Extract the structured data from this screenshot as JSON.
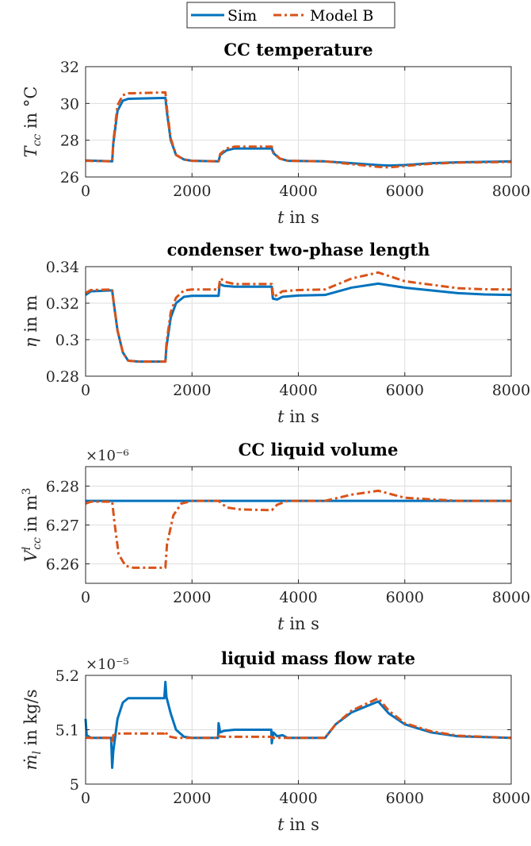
{
  "legend": {
    "entries": [
      {
        "name": "Sim",
        "color": "#0072BD",
        "style": "solid"
      },
      {
        "name": "Model B",
        "color": "#D95319",
        "style": "dashdot"
      }
    ]
  },
  "chart_data": [
    {
      "type": "line",
      "title": "CC temperature",
      "xlabel": "t in s",
      "ylabel": "T_cc in °C",
      "xlim": [
        0,
        8000
      ],
      "ylim": [
        26,
        32
      ],
      "xticks": [
        0,
        2000,
        4000,
        6000,
        8000
      ],
      "yticks": [
        26,
        28,
        30,
        32
      ],
      "exponent": "",
      "grid": true,
      "series": [
        {
          "name": "Sim",
          "points": [
            [
              0,
              26.9
            ],
            [
              500,
              26.85
            ],
            [
              520,
              27.8
            ],
            [
              600,
              29.6
            ],
            [
              700,
              30.15
            ],
            [
              800,
              30.25
            ],
            [
              1500,
              30.3
            ],
            [
              1530,
              29.5
            ],
            [
              1600,
              28.0
            ],
            [
              1700,
              27.2
            ],
            [
              1850,
              26.95
            ],
            [
              2000,
              26.88
            ],
            [
              2500,
              26.85
            ],
            [
              2530,
              27.2
            ],
            [
              2650,
              27.45
            ],
            [
              2800,
              27.55
            ],
            [
              3500,
              27.55
            ],
            [
              3530,
              27.3
            ],
            [
              3650,
              27.0
            ],
            [
              3800,
              26.88
            ],
            [
              4500,
              26.85
            ],
            [
              5000,
              26.75
            ],
            [
              5500,
              26.65
            ],
            [
              5700,
              26.62
            ],
            [
              6000,
              26.65
            ],
            [
              6500,
              26.75
            ],
            [
              7000,
              26.8
            ],
            [
              8000,
              26.85
            ]
          ]
        },
        {
          "name": "Model B",
          "points": [
            [
              0,
              26.88
            ],
            [
              500,
              26.85
            ],
            [
              520,
              27.9
            ],
            [
              600,
              29.9
            ],
            [
              700,
              30.45
            ],
            [
              800,
              30.55
            ],
            [
              1500,
              30.6
            ],
            [
              1530,
              29.7
            ],
            [
              1600,
              28.1
            ],
            [
              1700,
              27.2
            ],
            [
              1850,
              26.95
            ],
            [
              2000,
              26.88
            ],
            [
              2500,
              26.85
            ],
            [
              2530,
              27.25
            ],
            [
              2650,
              27.55
            ],
            [
              2800,
              27.65
            ],
            [
              3500,
              27.65
            ],
            [
              3530,
              27.35
            ],
            [
              3650,
              27.0
            ],
            [
              3800,
              26.88
            ],
            [
              4500,
              26.85
            ],
            [
              5000,
              26.7
            ],
            [
              5500,
              26.55
            ],
            [
              5700,
              26.52
            ],
            [
              6000,
              26.6
            ],
            [
              6500,
              26.72
            ],
            [
              7000,
              26.78
            ],
            [
              8000,
              26.82
            ]
          ]
        }
      ]
    },
    {
      "type": "line",
      "title": "condenser two-phase length",
      "xlabel": "t in s",
      "ylabel": "η in m",
      "xlim": [
        0,
        8000
      ],
      "ylim": [
        0.28,
        0.34
      ],
      "xticks": [
        0,
        2000,
        4000,
        6000,
        8000
      ],
      "yticks": [
        0.28,
        0.3,
        0.32,
        0.34
      ],
      "ytick_labels": [
        "0.28",
        "0.3",
        "0.32",
        "0.34"
      ],
      "exponent": "",
      "grid": true,
      "series": [
        {
          "name": "Sim",
          "points": [
            [
              0,
              0.3245
            ],
            [
              100,
              0.3265
            ],
            [
              500,
              0.327
            ],
            [
              520,
              0.322
            ],
            [
              600,
              0.305
            ],
            [
              700,
              0.293
            ],
            [
              800,
              0.2885
            ],
            [
              1000,
              0.288
            ],
            [
              1500,
              0.288
            ],
            [
              1520,
              0.296
            ],
            [
              1600,
              0.312
            ],
            [
              1700,
              0.32
            ],
            [
              1850,
              0.3235
            ],
            [
              2000,
              0.324
            ],
            [
              2500,
              0.324
            ],
            [
              2520,
              0.3305
            ],
            [
              2600,
              0.3295
            ],
            [
              2800,
              0.329
            ],
            [
              3500,
              0.329
            ],
            [
              3520,
              0.3225
            ],
            [
              3600,
              0.322
            ],
            [
              3700,
              0.3235
            ],
            [
              4000,
              0.3242
            ],
            [
              4500,
              0.3245
            ],
            [
              5000,
              0.3285
            ],
            [
              5500,
              0.3307
            ],
            [
              6000,
              0.3285
            ],
            [
              7000,
              0.3255
            ],
            [
              7500,
              0.3248
            ],
            [
              8000,
              0.3245
            ]
          ]
        },
        {
          "name": "Model B",
          "points": [
            [
              0,
              0.3255
            ],
            [
              100,
              0.3272
            ],
            [
              500,
              0.3275
            ],
            [
              520,
              0.3225
            ],
            [
              600,
              0.305
            ],
            [
              700,
              0.293
            ],
            [
              800,
              0.2885
            ],
            [
              1000,
              0.288
            ],
            [
              1500,
              0.288
            ],
            [
              1520,
              0.298
            ],
            [
              1600,
              0.315
            ],
            [
              1700,
              0.323
            ],
            [
              1850,
              0.327
            ],
            [
              2000,
              0.3275
            ],
            [
              2500,
              0.3275
            ],
            [
              2530,
              0.3335
            ],
            [
              2650,
              0.3315
            ],
            [
              2800,
              0.3305
            ],
            [
              3500,
              0.3305
            ],
            [
              3530,
              0.3235
            ],
            [
              3600,
              0.3245
            ],
            [
              3700,
              0.3265
            ],
            [
              4000,
              0.3272
            ],
            [
              4500,
              0.3275
            ],
            [
              5000,
              0.3335
            ],
            [
              5500,
              0.3368
            ],
            [
              6000,
              0.332
            ],
            [
              7000,
              0.3282
            ],
            [
              7500,
              0.3276
            ],
            [
              8000,
              0.3275
            ]
          ]
        }
      ]
    },
    {
      "type": "line",
      "title": "CC liquid volume",
      "xlabel": "t in s",
      "ylabel": "V^l_cc in m³",
      "xlim": [
        0,
        8000
      ],
      "ylim": [
        6.255,
        6.285
      ],
      "xticks": [
        0,
        2000,
        4000,
        6000,
        8000
      ],
      "yticks": [
        6.26,
        6.27,
        6.28
      ],
      "exponent": "×10⁻⁶",
      "grid": true,
      "series": [
        {
          "name": "Sim",
          "points": [
            [
              0,
              6.2762
            ],
            [
              8000,
              6.2762
            ]
          ]
        },
        {
          "name": "Model B",
          "points": [
            [
              0,
              6.2755
            ],
            [
              100,
              6.276
            ],
            [
              500,
              6.276
            ],
            [
              540,
              6.271
            ],
            [
              620,
              6.2625
            ],
            [
              750,
              6.2595
            ],
            [
              900,
              6.259
            ],
            [
              1500,
              6.259
            ],
            [
              1530,
              6.265
            ],
            [
              1650,
              6.2725
            ],
            [
              1800,
              6.2755
            ],
            [
              2000,
              6.2762
            ],
            [
              2500,
              6.2762
            ],
            [
              2650,
              6.2745
            ],
            [
              2900,
              6.274
            ],
            [
              3500,
              6.2738
            ],
            [
              3600,
              6.2752
            ],
            [
              3800,
              6.2762
            ],
            [
              4500,
              6.2762
            ],
            [
              5000,
              6.2778
            ],
            [
              5500,
              6.2788
            ],
            [
              6000,
              6.277
            ],
            [
              7000,
              6.2762
            ],
            [
              8000,
              6.2762
            ]
          ]
        }
      ]
    },
    {
      "type": "line",
      "title": "liquid mass flow rate",
      "xlabel": "t in s",
      "ylabel": "ṁ_l in kg/s",
      "xlim": [
        0,
        8000
      ],
      "ylim": [
        5.0,
        5.2
      ],
      "xticks": [
        0,
        2000,
        4000,
        6000,
        8000
      ],
      "yticks": [
        5.0,
        5.1,
        5.2
      ],
      "ytick_labels": [
        "5",
        "5.1",
        "5.2"
      ],
      "exponent": "×10⁻⁵",
      "grid": true,
      "series": [
        {
          "name": "Sim",
          "points": [
            [
              0,
              5.12
            ],
            [
              20,
              5.09
            ],
            [
              100,
              5.085
            ],
            [
              480,
              5.085
            ],
            [
              500,
              5.03
            ],
            [
              520,
              5.06
            ],
            [
              600,
              5.12
            ],
            [
              700,
              5.15
            ],
            [
              800,
              5.158
            ],
            [
              1480,
              5.158
            ],
            [
              1500,
              5.188
            ],
            [
              1520,
              5.16
            ],
            [
              1600,
              5.13
            ],
            [
              1700,
              5.1
            ],
            [
              1850,
              5.087
            ],
            [
              2000,
              5.085
            ],
            [
              2490,
              5.085
            ],
            [
              2500,
              5.112
            ],
            [
              2530,
              5.095
            ],
            [
              2600,
              5.098
            ],
            [
              2800,
              5.1
            ],
            [
              3490,
              5.1
            ],
            [
              3500,
              5.075
            ],
            [
              3530,
              5.095
            ],
            [
              3600,
              5.088
            ],
            [
              3700,
              5.09
            ],
            [
              3800,
              5.085
            ],
            [
              4500,
              5.085
            ],
            [
              4700,
              5.11
            ],
            [
              5000,
              5.132
            ],
            [
              5500,
              5.152
            ],
            [
              5700,
              5.13
            ],
            [
              6000,
              5.11
            ],
            [
              6500,
              5.095
            ],
            [
              7000,
              5.088
            ],
            [
              8000,
              5.085
            ]
          ]
        },
        {
          "name": "Model B",
          "points": [
            [
              0,
              5.085
            ],
            [
              480,
              5.085
            ],
            [
              500,
              5.075
            ],
            [
              520,
              5.09
            ],
            [
              600,
              5.093
            ],
            [
              1480,
              5.093
            ],
            [
              1500,
              5.097
            ],
            [
              1550,
              5.088
            ],
            [
              1700,
              5.085
            ],
            [
              2490,
              5.085
            ],
            [
              2500,
              5.088
            ],
            [
              2600,
              5.087
            ],
            [
              3490,
              5.087
            ],
            [
              3500,
              5.085
            ],
            [
              4500,
              5.085
            ],
            [
              4700,
              5.11
            ],
            [
              5000,
              5.135
            ],
            [
              5500,
              5.158
            ],
            [
              5700,
              5.135
            ],
            [
              6000,
              5.112
            ],
            [
              6500,
              5.097
            ],
            [
              7000,
              5.089
            ],
            [
              8000,
              5.085
            ]
          ]
        }
      ]
    }
  ]
}
